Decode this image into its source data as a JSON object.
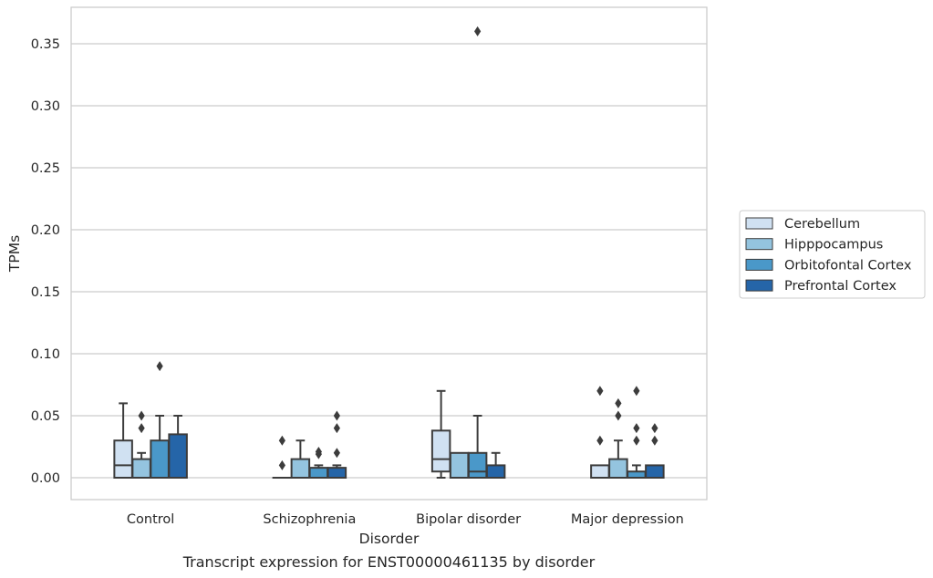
{
  "caption": "Transcript expression for ENST00000461135 by disorder",
  "chart_data": {
    "type": "box",
    "xlabel": "Disorder",
    "ylabel": "TPMs",
    "ylim": [
      -0.018,
      0.378
    ],
    "yticks": [
      0.0,
      0.05,
      0.1,
      0.15,
      0.2,
      0.25,
      0.3,
      0.35
    ],
    "ytick_labels": [
      "0.00",
      "0.05",
      "0.10",
      "0.15",
      "0.20",
      "0.25",
      "0.30",
      "0.35"
    ],
    "grid": true,
    "legend_position": "right",
    "categories": [
      "Control",
      "Schizophrenia",
      "Bipolar disorder",
      "Major depression"
    ],
    "series": [
      {
        "name": "Cerebellum",
        "color": "#d0e1f2",
        "boxes": [
          {
            "whislo": 0.0,
            "q1": 0.0,
            "med": 0.01,
            "q3": 0.03,
            "whishi": 0.06,
            "fliers": []
          },
          {
            "whislo": 0.0,
            "q1": 0.0,
            "med": 0.0,
            "q3": 0.0,
            "whishi": 0.0,
            "fliers": [
              0.01,
              0.03
            ]
          },
          {
            "whislo": 0.0,
            "q1": 0.005,
            "med": 0.015,
            "q3": 0.038,
            "whishi": 0.07,
            "fliers": []
          },
          {
            "whislo": 0.0,
            "q1": 0.0,
            "med": 0.0,
            "q3": 0.01,
            "whishi": 0.01,
            "fliers": [
              0.03,
              0.07
            ]
          }
        ]
      },
      {
        "name": "Hipppocampus",
        "color": "#94c4df",
        "boxes": [
          {
            "whislo": 0.0,
            "q1": 0.0,
            "med": 0.0,
            "q3": 0.015,
            "whishi": 0.02,
            "fliers": [
              0.04,
              0.05
            ]
          },
          {
            "whislo": 0.0,
            "q1": 0.0,
            "med": 0.0,
            "q3": 0.015,
            "whishi": 0.03,
            "fliers": []
          },
          {
            "whislo": 0.0,
            "q1": 0.0,
            "med": 0.0,
            "q3": 0.02,
            "whishi": 0.02,
            "fliers": []
          },
          {
            "whislo": 0.0,
            "q1": 0.0,
            "med": 0.0,
            "q3": 0.015,
            "whishi": 0.03,
            "fliers": [
              0.05,
              0.06
            ]
          }
        ]
      },
      {
        "name": "Orbitofontal Cortex",
        "color": "#4a98c9",
        "boxes": [
          {
            "whislo": 0.0,
            "q1": 0.0,
            "med": 0.0,
            "q3": 0.03,
            "whishi": 0.05,
            "fliers": [
              0.09
            ]
          },
          {
            "whislo": 0.0,
            "q1": 0.0,
            "med": 0.0,
            "q3": 0.008,
            "whishi": 0.01,
            "fliers": [
              0.019,
              0.021
            ]
          },
          {
            "whislo": 0.0,
            "q1": 0.0,
            "med": 0.005,
            "q3": 0.02,
            "whishi": 0.05,
            "fliers": [
              0.36
            ]
          },
          {
            "whislo": 0.0,
            "q1": 0.0,
            "med": 0.0,
            "q3": 0.005,
            "whishi": 0.01,
            "fliers": [
              0.03,
              0.04,
              0.07
            ]
          }
        ]
      },
      {
        "name": "Prefrontal Cortex",
        "color": "#2565a8",
        "boxes": [
          {
            "whislo": 0.0,
            "q1": 0.0,
            "med": 0.0,
            "q3": 0.035,
            "whishi": 0.05,
            "fliers": []
          },
          {
            "whislo": 0.0,
            "q1": 0.0,
            "med": 0.0,
            "q3": 0.008,
            "whishi": 0.01,
            "fliers": [
              0.02,
              0.04,
              0.05
            ]
          },
          {
            "whislo": 0.0,
            "q1": 0.0,
            "med": 0.0,
            "q3": 0.01,
            "whishi": 0.02,
            "fliers": []
          },
          {
            "whislo": 0.0,
            "q1": 0.0,
            "med": 0.0,
            "q3": 0.01,
            "whishi": 0.01,
            "fliers": [
              0.03,
              0.04
            ]
          }
        ]
      }
    ],
    "colors": {
      "grid": "#cccccc",
      "frame": "#cccccc",
      "edge": "#3c3c3c",
      "text": "#262626"
    }
  }
}
